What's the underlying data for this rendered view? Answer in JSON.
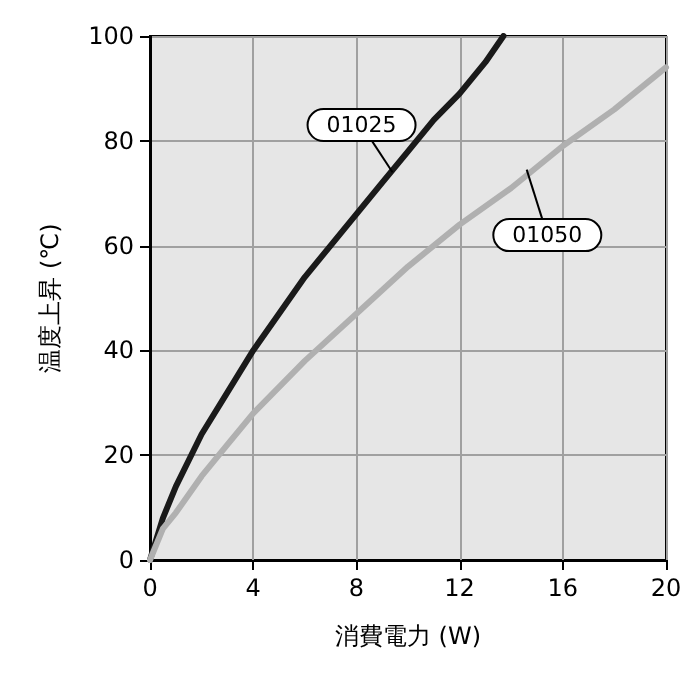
{
  "chart_data": {
    "type": "line",
    "xlabel": "消費電力 (W)",
    "ylabel": "温度上昇 (℃)",
    "xlim": [
      0,
      20
    ],
    "ylim": [
      0,
      100
    ],
    "xticks": [
      0,
      4,
      8,
      12,
      16,
      20
    ],
    "yticks": [
      0,
      20,
      40,
      60,
      80,
      100
    ],
    "grid": true,
    "line_style": "solid",
    "series": [
      {
        "name": "01025",
        "color": "#1a1a1a",
        "x": [
          0,
          0.5,
          1,
          2,
          3,
          4,
          5,
          6,
          7,
          8,
          9,
          10,
          11,
          12,
          13,
          13.7
        ],
        "values": [
          0,
          8,
          14,
          24,
          32,
          40,
          47,
          54,
          60,
          66,
          72,
          78,
          84,
          89,
          95,
          100
        ]
      },
      {
        "name": "01050",
        "color": "#b0b0b0",
        "x": [
          0,
          0.5,
          1,
          2,
          3,
          4,
          6,
          8,
          10,
          12,
          14,
          16,
          18,
          20
        ],
        "values": [
          0,
          6,
          9,
          16,
          22,
          28,
          38,
          47,
          56,
          64,
          71,
          79,
          86,
          94
        ]
      }
    ]
  }
}
